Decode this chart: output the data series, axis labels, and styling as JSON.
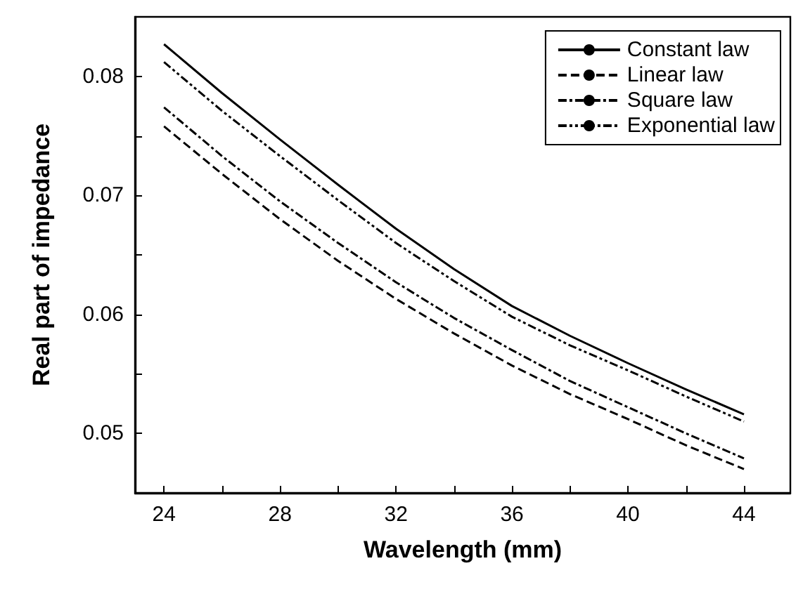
{
  "chart_data": {
    "type": "line",
    "xlabel": "Wavelength (mm)",
    "ylabel": "Real part of impedance",
    "x": [
      24,
      26,
      28,
      30,
      32,
      34,
      36,
      38,
      40,
      42,
      44
    ],
    "series": [
      {
        "name": "Constant law",
        "color": "#000000",
        "line_style": "solid",
        "values": [
          0.0827,
          0.0786,
          0.0747,
          0.0709,
          0.0672,
          0.0638,
          0.0607,
          0.0582,
          0.0559,
          0.0537,
          0.0516
        ]
      },
      {
        "name": "Linear law",
        "color": "#000000",
        "line_style": "dashed",
        "values": [
          0.0758,
          0.0718,
          0.068,
          0.0645,
          0.0613,
          0.0584,
          0.0557,
          0.0533,
          0.0512,
          0.049,
          0.047
        ]
      },
      {
        "name": "Square law",
        "color": "#000000",
        "line_style": "dashdot",
        "values": [
          0.0774,
          0.0733,
          0.0695,
          0.066,
          0.0627,
          0.0597,
          0.057,
          0.0544,
          0.0522,
          0.05,
          0.0479
        ]
      },
      {
        "name": "Exponential law",
        "color": "#000000",
        "line_style": "dashdotdot",
        "values": [
          0.0812,
          0.0771,
          0.0733,
          0.0696,
          0.066,
          0.0628,
          0.0598,
          0.0574,
          0.0553,
          0.0531,
          0.051
        ]
      }
    ],
    "xlim": [
      23,
      45.6
    ],
    "xticks": [
      24,
      {
        "value": 26,
        "label": null
      },
      28,
      {
        "value": 30,
        "label": null
      },
      32,
      {
        "value": 34,
        "label": null
      },
      36,
      {
        "value": 38,
        "label": null
      },
      40,
      {
        "value": 42,
        "label": null
      },
      44
    ],
    "ylim": [
      0.045,
      0.085
    ],
    "yticks": [
      0.05,
      {
        "value": 0.055,
        "label": null
      },
      0.06,
      {
        "value": 0.065,
        "label": null
      },
      0.07,
      {
        "value": 0.075,
        "label": null
      },
      0.08
    ],
    "grid": false,
    "legend": "top right",
    "marker": "none"
  }
}
